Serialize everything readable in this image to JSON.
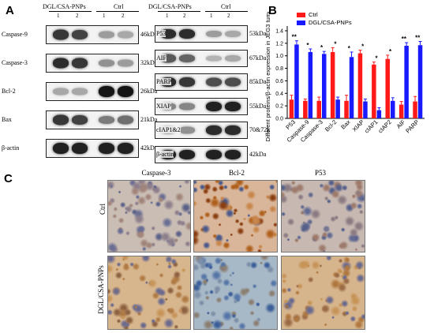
{
  "panels": {
    "a": "A",
    "b": "B",
    "c": "C"
  },
  "western_blot": {
    "group_label": "DGL/CSA-PNPs",
    "ctrl_label": "Ctrl",
    "lanes": [
      "1",
      "2",
      "1",
      "2"
    ],
    "left": [
      {
        "protein": "Caspase-9",
        "size": "46kDa",
        "levels": [
          0.8,
          0.75,
          0.35,
          0.3
        ]
      },
      {
        "protein": "Caspase-3",
        "size": "32kDa",
        "levels": [
          0.85,
          0.8,
          0.4,
          0.35
        ]
      },
      {
        "protein": "Bcl-2",
        "size": "26kDa",
        "levels": [
          0.3,
          0.3,
          0.95,
          0.95
        ]
      },
      {
        "protein": "Bax",
        "size": "21kDa",
        "levels": [
          0.8,
          0.75,
          0.5,
          0.55
        ]
      },
      {
        "protein": "β-actin",
        "size": "42kDa",
        "levels": [
          0.9,
          0.9,
          0.9,
          0.9
        ]
      }
    ],
    "right": [
      {
        "protein": "P53",
        "size": "53kDa",
        "levels": [
          0.85,
          0.85,
          0.35,
          0.3
        ]
      },
      {
        "protein": "AIF",
        "size": "67kDa",
        "levels": [
          0.65,
          0.6,
          0.25,
          0.3
        ]
      },
      {
        "protein": "PARP",
        "size": "85kDa",
        "levels": [
          0.85,
          0.8,
          0.7,
          0.7
        ]
      },
      {
        "protein": "XIAP",
        "size": "55kDa",
        "levels": [
          0.45,
          0.45,
          0.9,
          0.9
        ]
      },
      {
        "protein": "cIAP1&2",
        "size": "70&72k",
        "levels": [
          0.4,
          0.4,
          0.85,
          0.85
        ]
      },
      {
        "protein": "β-actin",
        "size": "42kDa",
        "levels": [
          0.9,
          0.9,
          0.9,
          0.9
        ]
      }
    ]
  },
  "chart_data": {
    "type": "bar",
    "title": "",
    "ylabel": "Different proteins/β-actin expression in JEG3 tumor",
    "xlabel": "",
    "ylim": [
      0,
      1.4
    ],
    "yticks": [
      "0.0",
      "0.2",
      "0.4",
      "0.6",
      "0.8",
      "1.0",
      "1.2",
      "1.4"
    ],
    "categories": [
      "P53",
      "Caspase-9",
      "Caspase-3",
      "Bcl-2",
      "Bax",
      "XIAP",
      "cIAP1",
      "cIAP2",
      "AIF",
      "PARP"
    ],
    "series": [
      {
        "name": "Ctrl",
        "color": "#ff1a1a",
        "values": [
          0.3,
          0.28,
          0.28,
          1.06,
          0.28,
          1.04,
          0.86,
          0.95,
          0.22,
          0.27
        ],
        "errors": [
          0.07,
          0.03,
          0.06,
          0.07,
          0.09,
          0.05,
          0.04,
          0.06,
          0.05,
          0.08
        ]
      },
      {
        "name": "DGL/CSA-PNPs",
        "color": "#1a1aff",
        "values": [
          1.18,
          1.06,
          1.03,
          0.3,
          0.98,
          0.27,
          0.13,
          0.28,
          1.16,
          1.17
        ],
        "errors": [
          0.06,
          0.05,
          0.04,
          0.04,
          0.08,
          0.04,
          0.04,
          0.05,
          0.05,
          0.06
        ]
      }
    ],
    "significance": [
      "**",
      "*",
      "*",
      "*",
      "*",
      "*",
      "*",
      "*",
      "**",
      "**"
    ],
    "legend_position": "top-left"
  },
  "ihc": {
    "columns": [
      "Caspase-3",
      "Bcl-2",
      "P53"
    ],
    "rows": [
      "Ctrl",
      "DGL/CSA-PNPs"
    ]
  }
}
